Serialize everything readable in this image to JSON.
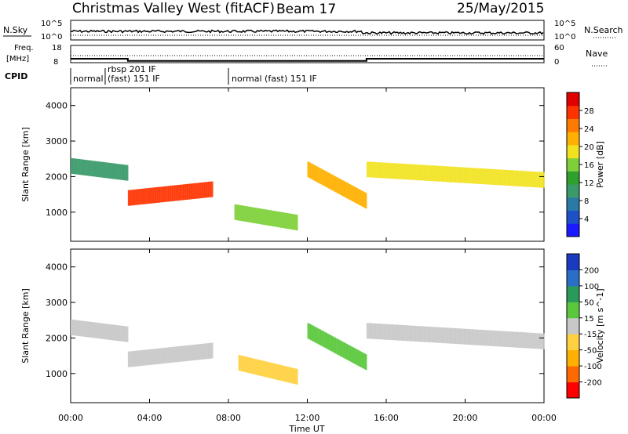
{
  "header": {
    "station": "Christmas Valley West (fitACF)",
    "beam": "Beam 17",
    "date": "25/May/2015"
  },
  "top_panels": {
    "nsky_label": "N.Sky",
    "nsky_ticks": [
      "10^5",
      "10^0"
    ],
    "nsearch_label": "N.Search",
    "nsearch_ticks": [
      "10^5",
      "10^0"
    ],
    "freq_label_line1": "Freq.",
    "freq_label_line2": "[MHz]",
    "freq_ticks": [
      "18",
      "8"
    ],
    "nave_label": "Nave",
    "nave_ticks": [
      "60",
      "0"
    ],
    "cpid_label": "CPID",
    "cpid_segments": [
      {
        "label": "normal",
        "start_h": 0.0,
        "end_h": 1.75
      },
      {
        "label": "rbsp 201 IF",
        "start_h": 1.75,
        "end_h": 8.0
      },
      {
        "label": "(fast) 151 IF",
        "start_h": 1.75,
        "end_h": 8.0
      },
      {
        "label": "normal (fast) 151 IF",
        "start_h": 8.0,
        "end_h": 24.0
      }
    ]
  },
  "power_panel": {
    "ylabel": "Slant Range [km]",
    "yticks": [
      "1000",
      "2000",
      "3000",
      "4000"
    ],
    "colorbar_label": "Power [dB]",
    "colorbar_ticks": [
      "4",
      "8",
      "12",
      "16",
      "20",
      "24",
      "28"
    ],
    "colorbar_colors": [
      "#1a1aff",
      "#1e50c8",
      "#2a7aa6",
      "#3a9a6a",
      "#2ea02e",
      "#7ed03a",
      "#f2e21e",
      "#ffb000",
      "#ff7a00",
      "#ff3300",
      "#e00000"
    ]
  },
  "velocity_panel": {
    "ylabel": "Slant Range [km]",
    "yticks": [
      "1000",
      "2000",
      "3000",
      "4000"
    ],
    "colorbar_label": "Velocity [m s^-1]",
    "colorbar_ticks": [
      "-200",
      "-100",
      "-50",
      "-15",
      "15",
      "50",
      "100",
      "200"
    ],
    "colorbar_colors": [
      "#ff0000",
      "#ff6a00",
      "#ffb000",
      "#ffd040",
      "#c8c8c8",
      "#5ac83c",
      "#2a9a5a",
      "#2a6ec8",
      "#1a3ac0"
    ]
  },
  "xaxis": {
    "label": "Time UT",
    "ticks": [
      "00:00",
      "04:00",
      "08:00",
      "12:00",
      "16:00",
      "20:00",
      "00:00"
    ]
  },
  "chart_data": {
    "type": "heatmap",
    "title": "Christmas Valley West (fitACF)",
    "subtitle": "Beam 17  25/May/2015",
    "xlabel": "Time UT",
    "ylabel": "Slant Range [km]",
    "xlim": [
      0,
      24
    ],
    "ylim": [
      180,
      4500
    ],
    "frequency_mhz": [
      {
        "start_h": 0.0,
        "end_h": 2.9,
        "value": 10.3
      },
      {
        "start_h": 2.9,
        "end_h": 8.0,
        "value": 9.0
      },
      {
        "start_h": 8.0,
        "end_h": 15.0,
        "value": 9.0
      },
      {
        "start_h": 15.0,
        "end_h": 24.0,
        "value": 10.3
      }
    ],
    "power_scatter_bands_db": [
      {
        "start_h": 0.0,
        "end_h": 2.9,
        "range_km_start": 2300,
        "range_km_end": 2100,
        "power_db": 10
      },
      {
        "start_h": 2.9,
        "end_h": 7.2,
        "range_km_start": 1400,
        "range_km_end": 1650,
        "power_db": 26
      },
      {
        "start_h": 8.3,
        "end_h": 11.5,
        "range_km_start": 1000,
        "range_km_end": 700,
        "power_db": 14
      },
      {
        "start_h": 12.0,
        "end_h": 15.0,
        "range_km_start": 2200,
        "range_km_end": 1300,
        "power_db": 20
      },
      {
        "start_h": 15.0,
        "end_h": 24.0,
        "range_km_start": 2200,
        "range_km_end": 1900,
        "power_db": 18
      }
    ],
    "velocity_scatter_bands_ms": [
      {
        "start_h": 0.0,
        "end_h": 2.9,
        "range_km_start": 2300,
        "range_km_end": 2100,
        "velocity": 0
      },
      {
        "start_h": 2.9,
        "end_h": 7.2,
        "range_km_start": 1400,
        "range_km_end": 1650,
        "velocity": 0
      },
      {
        "start_h": 8.5,
        "end_h": 11.5,
        "range_km_start": 1300,
        "range_km_end": 900,
        "velocity": -40
      },
      {
        "start_h": 12.0,
        "end_h": 15.0,
        "range_km_start": 2200,
        "range_km_end": 1300,
        "velocity": 30
      },
      {
        "start_h": 15.0,
        "end_h": 24.0,
        "range_km_start": 2200,
        "range_km_end": 1900,
        "velocity": 0
      }
    ]
  }
}
